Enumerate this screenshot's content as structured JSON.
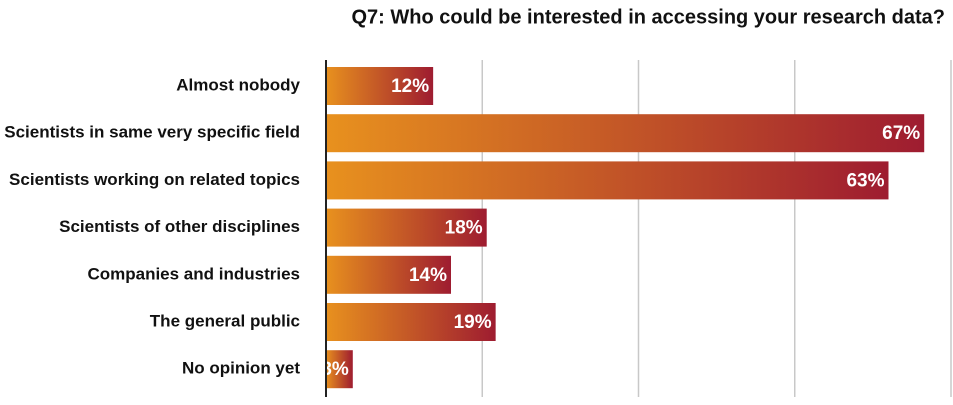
{
  "chart_data": {
    "type": "bar",
    "orientation": "horizontal",
    "title": "Q7: Who could be interested in accessing your research data?",
    "categories": [
      "Almost nobody",
      "Scientists in same very specific field",
      "Scientists working on related topics",
      "Scientists of other disciplines",
      "Companies and industries",
      "The general public",
      "No opinion yet"
    ],
    "values": [
      12,
      67,
      63,
      18,
      14,
      19,
      3
    ],
    "value_labels": [
      "12%",
      "67%",
      "63%",
      "18%",
      "14%",
      "19%",
      "3%"
    ],
    "colors": [
      "#e8911e",
      "#9e1c30"
    ],
    "xlim": [
      0,
      70
    ],
    "xticks": [
      0,
      17.5,
      35,
      52.5,
      70
    ],
    "grid": true
  }
}
